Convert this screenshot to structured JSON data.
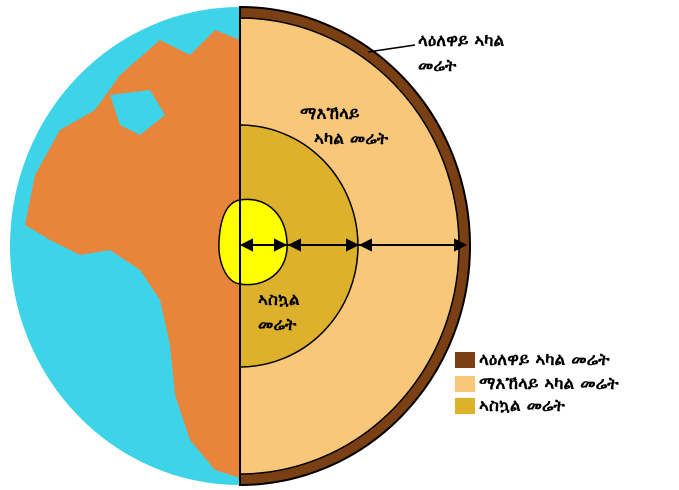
{
  "labels": {
    "crust": [
      "ላዕለዋይ ኣካል",
      "መሬት"
    ],
    "mantle": [
      "ማእኸላይ",
      "ኣካል መሬት"
    ],
    "core": [
      "ኣስኳል",
      "መሬት"
    ]
  },
  "legend": [
    {
      "text": "ላዕለዋይ ኣካል መሬት",
      "color": "#7a3f12"
    },
    {
      "text": "ማእኸላይ ኣካል መሬት",
      "color": "#f9c77a"
    },
    {
      "text": "ኣስኳል መሬት",
      "color": "#ddb12b"
    }
  ]
}
